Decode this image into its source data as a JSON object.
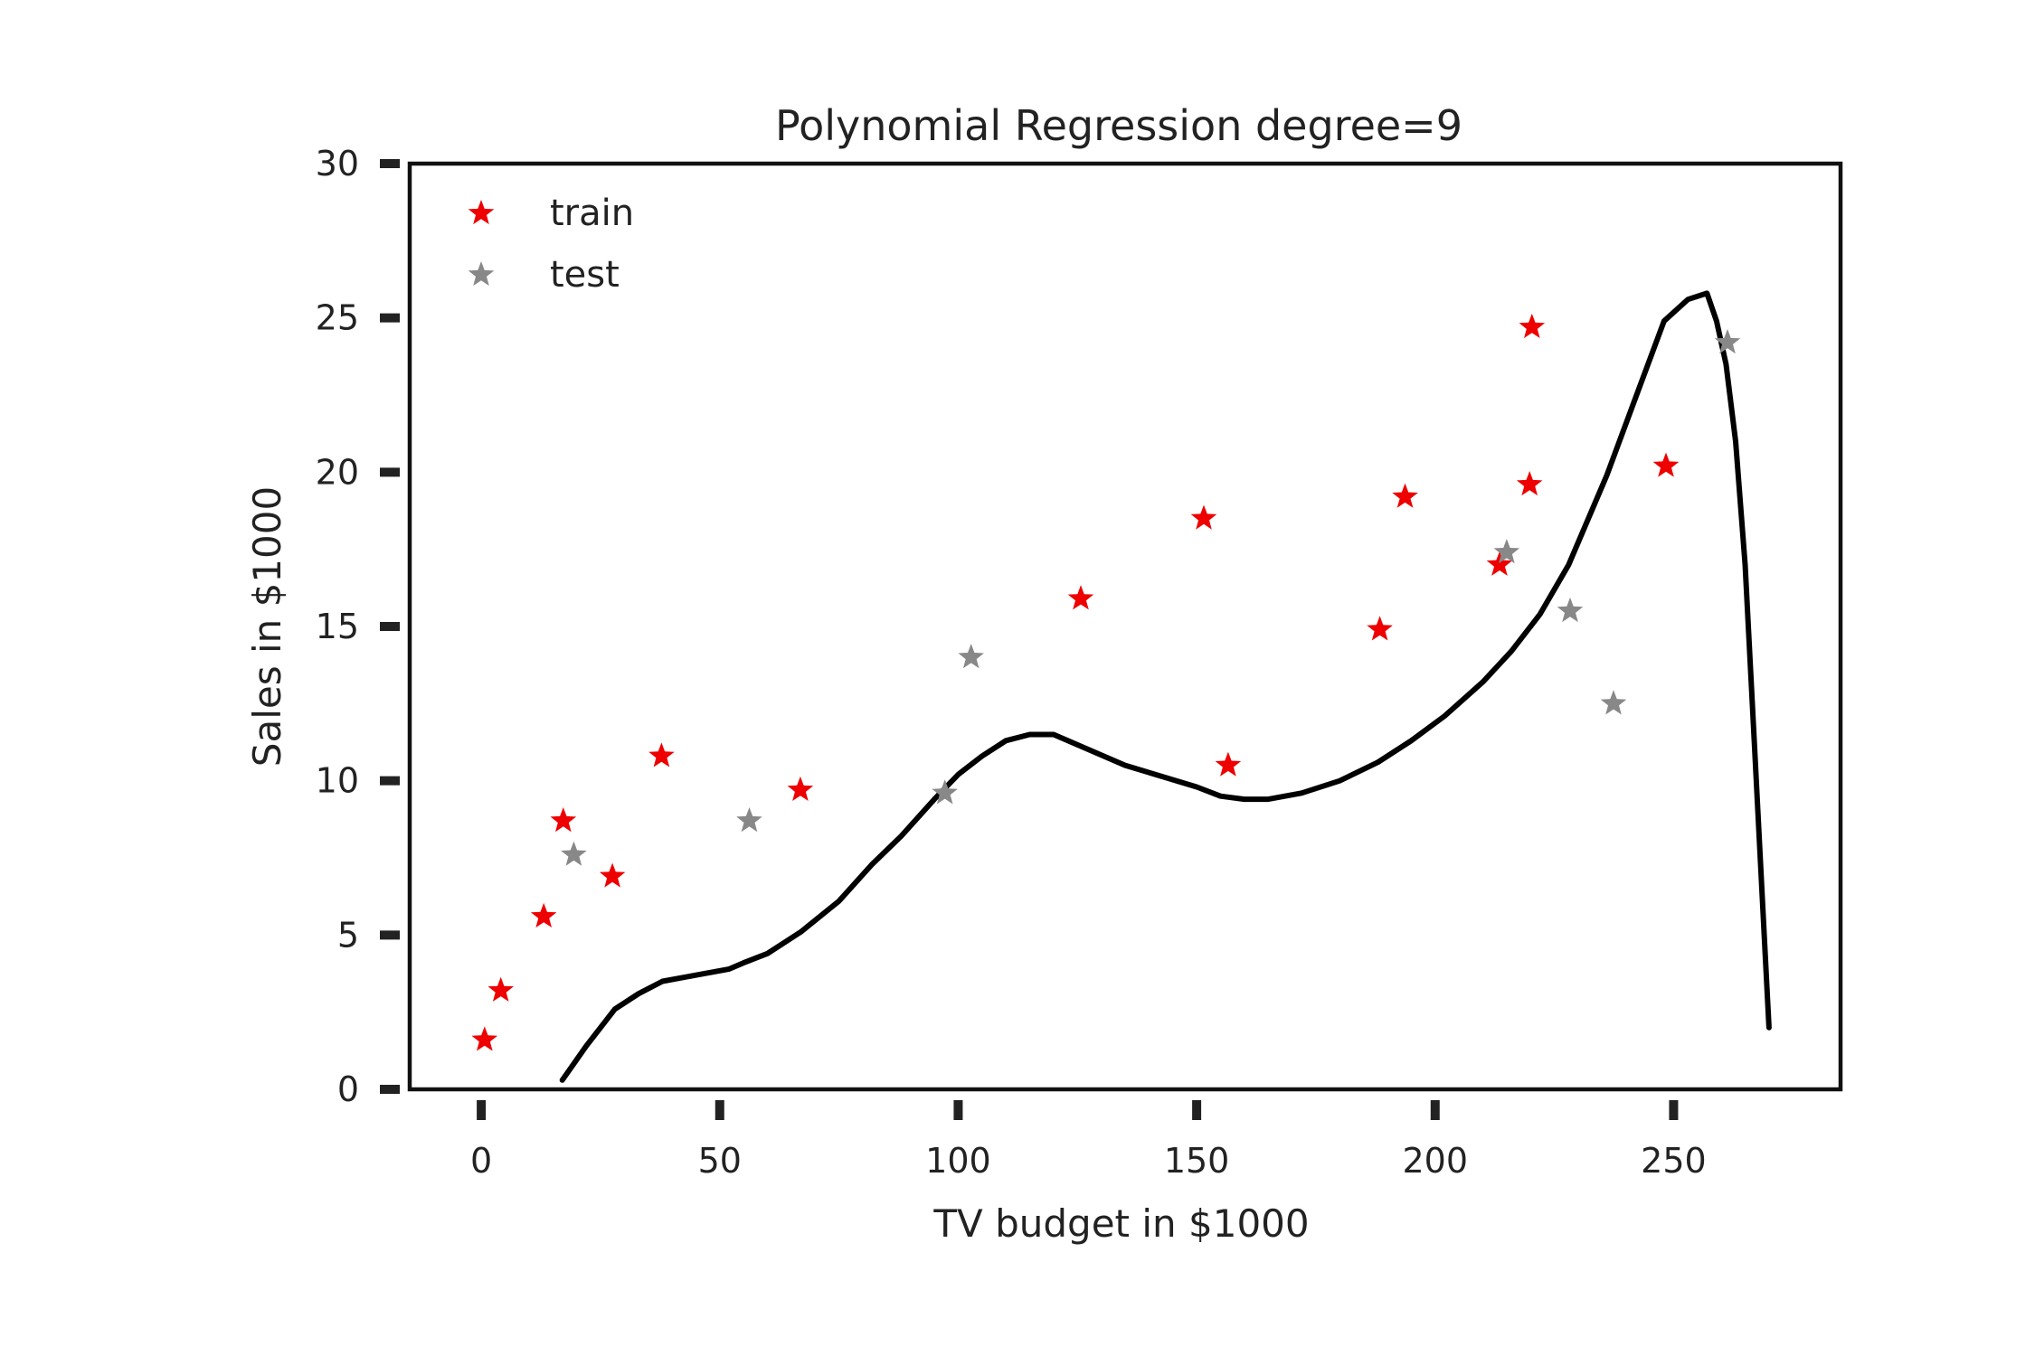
{
  "chart_data": {
    "type": "scatter",
    "title": "Polynomial Regression degree=9",
    "xlabel": "TV budget in $1000",
    "ylabel": "Sales in $1000",
    "xlim": [
      -15,
      285
    ],
    "ylim": [
      0,
      30
    ],
    "xticks": [
      0,
      50,
      100,
      150,
      200,
      250
    ],
    "yticks": [
      0,
      5,
      10,
      15,
      20,
      25,
      30
    ],
    "grid": false,
    "legend_position": "top-left",
    "colors": {
      "train": "#ee0000",
      "test": "#888888",
      "fit": "#000000",
      "axes": "#111111"
    },
    "series": [
      {
        "name": "train",
        "kind": "scatter",
        "marker": "star",
        "x": [
          0.7,
          4.1,
          13.1,
          17.2,
          27.5,
          37.8,
          66.9,
          125.7,
          151.5,
          156.6,
          188.4,
          193.7,
          213.5,
          219.8,
          220.3,
          248.4
        ],
        "y": [
          1.6,
          3.2,
          5.6,
          8.7,
          6.9,
          10.8,
          9.7,
          15.9,
          18.5,
          10.5,
          14.9,
          19.2,
          17.0,
          19.6,
          24.7,
          20.2
        ]
      },
      {
        "name": "test",
        "kind": "scatter",
        "marker": "star",
        "x": [
          19.4,
          56.2,
          97.2,
          102.7,
          215.0,
          228.3,
          237.4,
          261.3
        ],
        "y": [
          7.6,
          8.7,
          9.6,
          14.0,
          17.4,
          15.5,
          12.5,
          24.2
        ]
      },
      {
        "name": "",
        "kind": "line",
        "x": [
          17.0,
          22.0,
          28.0,
          33.0,
          38.0,
          45.0,
          52.0,
          55.0,
          60.0,
          67.0,
          75.0,
          82.0,
          88.0,
          95.0,
          100.0,
          105.0,
          110.0,
          115.0,
          120.0,
          126.0,
          135.0,
          150.0,
          155.0,
          160.0,
          165.0,
          172.0,
          180.0,
          188.0,
          195.0,
          202.0,
          210.0,
          216.0,
          222.0,
          228.0,
          236.0,
          242.0,
          248.0,
          253.0,
          257.0,
          259.0,
          261.0,
          263.0,
          265.0,
          267.0,
          269.0,
          270.0
        ],
        "y": [
          0.3,
          1.4,
          2.6,
          3.1,
          3.5,
          3.7,
          3.9,
          4.1,
          4.4,
          5.1,
          6.1,
          7.3,
          8.2,
          9.4,
          10.2,
          10.8,
          11.3,
          11.5,
          11.5,
          11.1,
          10.5,
          9.8,
          9.5,
          9.4,
          9.4,
          9.6,
          10.0,
          10.6,
          11.3,
          12.1,
          13.2,
          14.2,
          15.4,
          17.0,
          19.9,
          22.4,
          24.9,
          25.6,
          25.8,
          24.9,
          23.5,
          21.0,
          17.0,
          11.0,
          5.0,
          2.0
        ]
      }
    ]
  }
}
